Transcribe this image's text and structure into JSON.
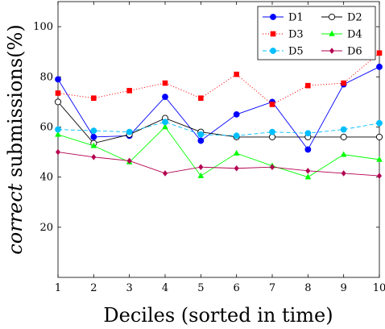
{
  "chart_data": {
    "type": "line",
    "xlabel": "Deciles (sorted in time)",
    "ylabel_italic": "correct",
    "ylabel_rest": " submissions(%)",
    "x": [
      1,
      2,
      3,
      4,
      5,
      6,
      7,
      8,
      9,
      10
    ],
    "xlim": [
      1,
      10
    ],
    "ylim": [
      0,
      110
    ],
    "yticks": [
      20,
      40,
      60,
      80,
      100
    ],
    "grid": false,
    "legend_position": "top-right",
    "series": [
      {
        "name": "D1",
        "color": "#0000ff",
        "marker": "circle-filled",
        "dash": "solid",
        "values": [
          79,
          56,
          56.5,
          72,
          54.5,
          65,
          70,
          51,
          77,
          84
        ]
      },
      {
        "name": "D2",
        "color": "#000000",
        "marker": "circle-open",
        "dash": "solid",
        "values": [
          70,
          53.5,
          57,
          63.5,
          58,
          56,
          56,
          56,
          56,
          56
        ]
      },
      {
        "name": "D3",
        "color": "#ff0000",
        "marker": "square",
        "dash": "dotted",
        "values": [
          73.5,
          71.5,
          74.5,
          77.5,
          71.5,
          81,
          69,
          76.5,
          77.5,
          89.5
        ]
      },
      {
        "name": "D4",
        "color": "#00ff00",
        "marker": "triangle",
        "dash": "solid",
        "values": [
          57,
          52.5,
          46,
          60,
          40.5,
          49.5,
          44.5,
          40,
          49,
          47
        ]
      },
      {
        "name": "D5",
        "color": "#00bfff",
        "marker": "circle-filled",
        "dash": "dashed",
        "values": [
          59,
          58.5,
          58,
          62,
          57,
          56.5,
          58,
          57.5,
          59,
          61.5
        ]
      },
      {
        "name": "D6",
        "color": "#b30050",
        "marker": "diamond",
        "dash": "solid",
        "values": [
          50,
          48,
          46.5,
          41.5,
          44,
          43.5,
          44,
          42.5,
          41.5,
          40.5
        ]
      }
    ]
  }
}
